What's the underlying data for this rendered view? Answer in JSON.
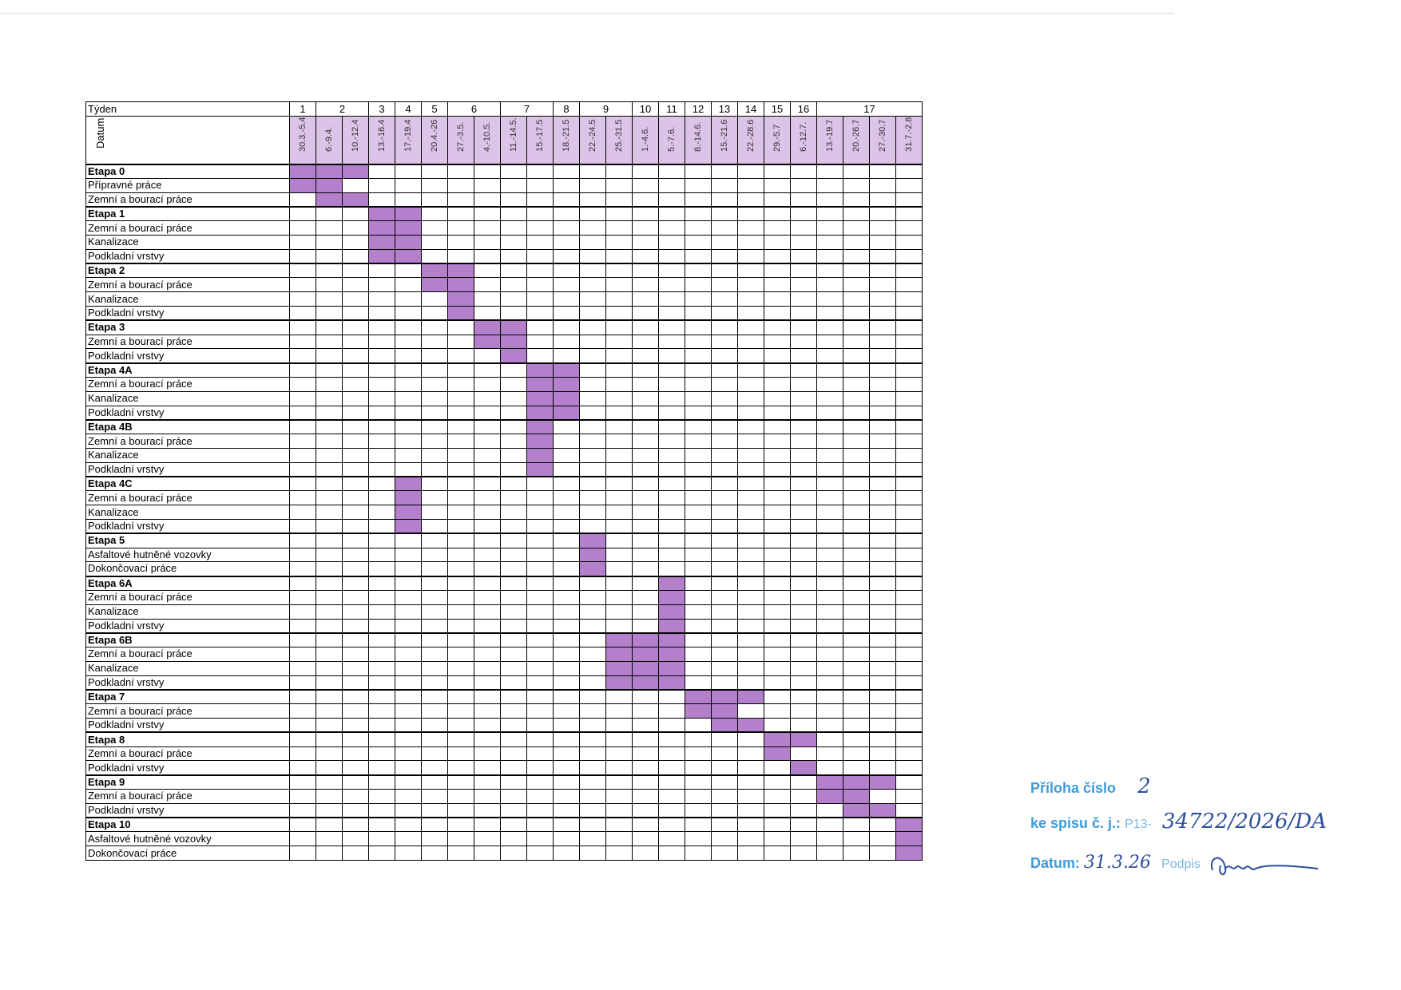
{
  "header": {
    "week_label": "Týden",
    "date_label": "Datum"
  },
  "weeks": [
    {
      "label": "1",
      "span": 1
    },
    {
      "label": "2",
      "span": 2
    },
    {
      "label": "3",
      "span": 1
    },
    {
      "label": "4",
      "span": 1
    },
    {
      "label": "5",
      "span": 1
    },
    {
      "label": "6",
      "span": 2
    },
    {
      "label": "7",
      "span": 2
    },
    {
      "label": "8",
      "span": 1
    },
    {
      "label": "9",
      "span": 2
    },
    {
      "label": "10",
      "span": 1
    },
    {
      "label": "11",
      "span": 1
    },
    {
      "label": "12",
      "span": 1
    },
    {
      "label": "13",
      "span": 1
    },
    {
      "label": "14",
      "span": 1
    },
    {
      "label": "15",
      "span": 1
    },
    {
      "label": "16",
      "span": 1
    },
    {
      "label": "17",
      "span": 4
    }
  ],
  "dates": [
    "30.3.-5.4",
    "6.-9.4.",
    "10.-12.4",
    "13.-16.4",
    "17.-19.4",
    "20.4.-26",
    "27.-3.5.",
    "4.-10.5.",
    "11.-14.5.",
    "15.-17.5",
    "18.-21.5",
    "22.-24.5",
    "25.-31.5",
    "1.-4.6.",
    "5.-7.6.",
    "8.-14.6.",
    "15.-21.6",
    "22.-28.6",
    "29.-5.7",
    "6.-12.7.",
    "13.-19.7",
    "20.-26.7",
    "27.-30.7",
    "31.7.-2.8"
  ],
  "rows": [
    {
      "label": "Etapa 0",
      "stage": true,
      "on": [
        0,
        1,
        2
      ]
    },
    {
      "label": "Přípravné práce",
      "stage": false,
      "on": [
        0,
        1
      ]
    },
    {
      "label": "Zemní a bourací práce",
      "stage": false,
      "on": [
        1,
        2
      ]
    },
    {
      "label": "Etapa 1",
      "stage": true,
      "on": [
        3,
        4
      ]
    },
    {
      "label": "Zemní a bourací práce",
      "stage": false,
      "on": [
        3,
        4
      ]
    },
    {
      "label": "Kanalizace",
      "stage": false,
      "on": [
        3,
        4
      ]
    },
    {
      "label": "Podkladní vrstvy",
      "stage": false,
      "on": [
        3,
        4
      ]
    },
    {
      "label": "Etapa 2",
      "stage": true,
      "on": [
        5,
        6
      ]
    },
    {
      "label": "Zemní a bourací práce",
      "stage": false,
      "on": [
        5,
        6
      ]
    },
    {
      "label": "Kanalizace",
      "stage": false,
      "on": [
        6
      ]
    },
    {
      "label": "Podkladní vrstvy",
      "stage": false,
      "on": [
        6
      ]
    },
    {
      "label": "Etapa 3",
      "stage": true,
      "on": [
        7,
        8
      ]
    },
    {
      "label": "Zemní a bourací práce",
      "stage": false,
      "on": [
        7,
        8
      ]
    },
    {
      "label": "Podkladní vrstvy",
      "stage": false,
      "on": [
        8
      ]
    },
    {
      "label": "Etapa 4A",
      "stage": true,
      "on": [
        9,
        10
      ]
    },
    {
      "label": "Zemní a bourací práce",
      "stage": false,
      "on": [
        9,
        10
      ]
    },
    {
      "label": "Kanalizace",
      "stage": false,
      "on": [
        9,
        10
      ]
    },
    {
      "label": "Podkladní vrstvy",
      "stage": false,
      "on": [
        9,
        10
      ]
    },
    {
      "label": "Etapa 4B",
      "stage": true,
      "on": [
        9
      ]
    },
    {
      "label": "Zemní a bourací práce",
      "stage": false,
      "on": [
        9
      ]
    },
    {
      "label": "Kanalizace",
      "stage": false,
      "on": [
        9
      ]
    },
    {
      "label": "Podkladní vrstvy",
      "stage": false,
      "on": [
        9
      ]
    },
    {
      "label": "Etapa 4C",
      "stage": true,
      "on": [
        4
      ]
    },
    {
      "label": "Zemní a bourací práce",
      "stage": false,
      "on": [
        4
      ]
    },
    {
      "label": "Kanalizace",
      "stage": false,
      "on": [
        4
      ]
    },
    {
      "label": "Podkladní vrstvy",
      "stage": false,
      "on": [
        4
      ]
    },
    {
      "label": "Etapa 5",
      "stage": true,
      "on": [
        11
      ]
    },
    {
      "label": "Asfaltové hutněné vozovky",
      "stage": false,
      "on": [
        11
      ]
    },
    {
      "label": "Dokončovací práce",
      "stage": false,
      "on": [
        11
      ]
    },
    {
      "label": "Etapa 6A",
      "stage": true,
      "on": [
        14
      ]
    },
    {
      "label": "Zemní a bourací práce",
      "stage": false,
      "on": [
        14
      ]
    },
    {
      "label": "Kanalizace",
      "stage": false,
      "on": [
        14
      ]
    },
    {
      "label": "Podkladní vrstvy",
      "stage": false,
      "on": [
        14
      ]
    },
    {
      "label": "Etapa 6B",
      "stage": true,
      "on": [
        12,
        13,
        14
      ]
    },
    {
      "label": "Zemní a bourací práce",
      "stage": false,
      "on": [
        12,
        13,
        14
      ]
    },
    {
      "label": "Kanalizace",
      "stage": false,
      "on": [
        12,
        13,
        14
      ]
    },
    {
      "label": "Podkladní vrstvy",
      "stage": false,
      "on": [
        12,
        13,
        14
      ]
    },
    {
      "label": "Etapa 7",
      "stage": true,
      "on": [
        15,
        16,
        17
      ]
    },
    {
      "label": "Zemní a bourací práce",
      "stage": false,
      "on": [
        15,
        16
      ]
    },
    {
      "label": "Podkladní vrstvy",
      "stage": false,
      "on": [
        16,
        17
      ]
    },
    {
      "label": "Etapa 8",
      "stage": true,
      "on": [
        18,
        19
      ]
    },
    {
      "label": "Zemní a bourací práce",
      "stage": false,
      "on": [
        18
      ]
    },
    {
      "label": "Podkladní vrstvy",
      "stage": false,
      "on": [
        19
      ]
    },
    {
      "label": "Etapa 9",
      "stage": true,
      "on": [
        20,
        21,
        22
      ]
    },
    {
      "label": "Zemní a bourací práce",
      "stage": false,
      "on": [
        20,
        21
      ]
    },
    {
      "label": "Podkladní vrstvy",
      "stage": false,
      "on": [
        21,
        22
      ]
    },
    {
      "label": "Etapa 10",
      "stage": true,
      "on": [
        23
      ]
    },
    {
      "label": "Asfaltové hutněné vozovky",
      "stage": false,
      "on": [
        23
      ]
    },
    {
      "label": "Dokončovací práce",
      "stage": false,
      "on": [
        23
      ]
    }
  ],
  "colors": {
    "bar": "#b47fcb",
    "date_header_bg": "#dcc3e8",
    "stamp_text": "#3d9bdc"
  },
  "stamp": {
    "annex_label": "Příloha číslo",
    "annex_value": "2",
    "file_label": "ke spisu č. j.:",
    "file_prefix": "P13-",
    "file_value": "34722/2026/DA",
    "date_label": "Datum:",
    "date_value": "31.3.26",
    "signature_label": "Podpis"
  }
}
